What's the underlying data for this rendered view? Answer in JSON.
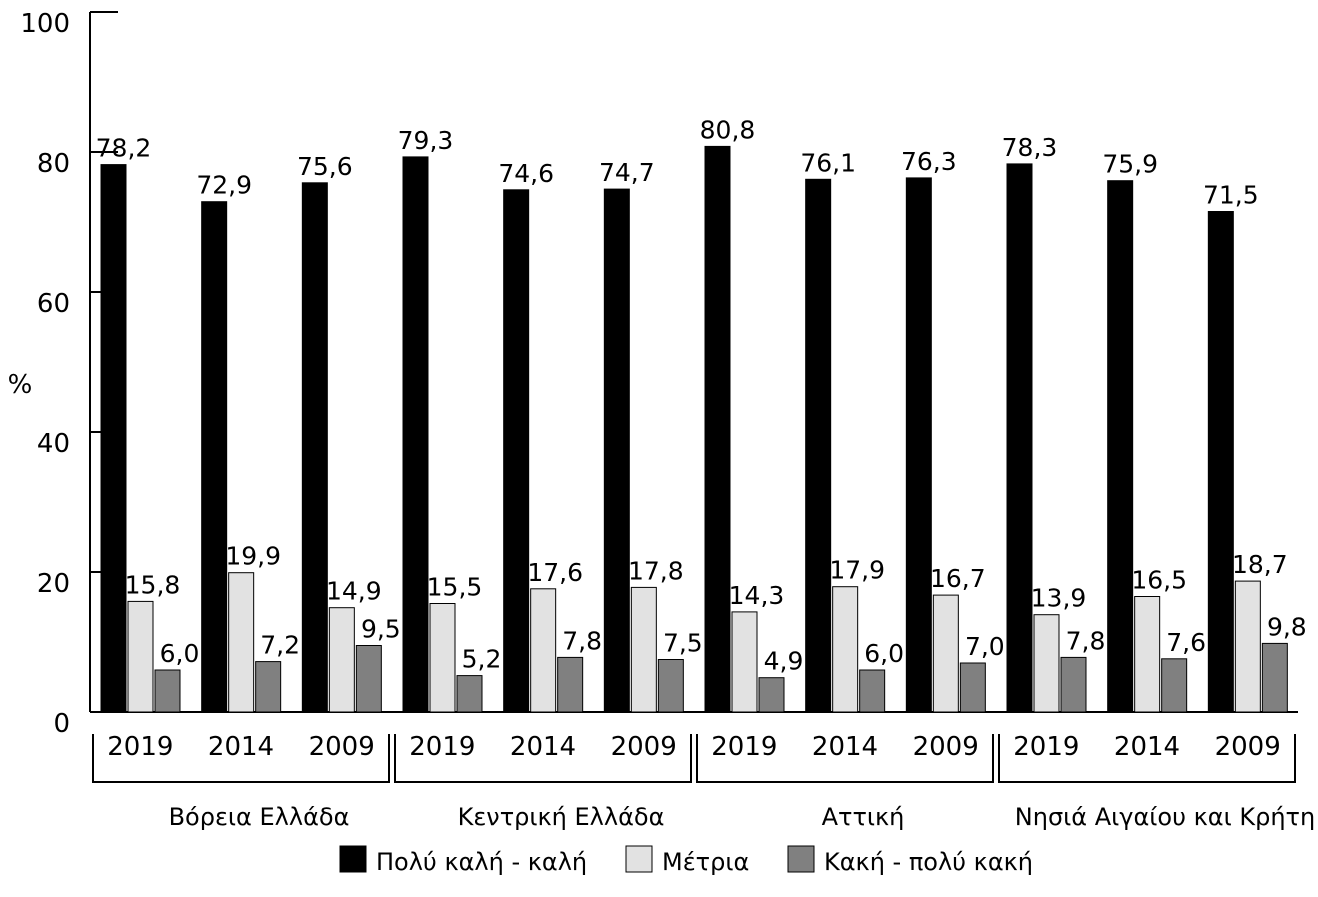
{
  "chart_data": {
    "type": "bar",
    "ylabel": "%",
    "ylim": [
      0,
      100
    ],
    "yticks": [
      0,
      20,
      40,
      60,
      80,
      100
    ],
    "grid": false,
    "legend_position": "bottom",
    "groups": [
      {
        "region": "Βόρεια Ελλάδα",
        "years": [
          "2019",
          "2014",
          "2009"
        ]
      },
      {
        "region": "Κεντρική Ελλάδα",
        "years": [
          "2019",
          "2014",
          "2009"
        ]
      },
      {
        "region": "Αττική",
        "years": [
          "2019",
          "2014",
          "2009"
        ]
      },
      {
        "region": "Νησιά Αιγαίου και Κρήτη",
        "years": [
          "2019",
          "2014",
          "2009"
        ]
      }
    ],
    "series": [
      {
        "name": "Πολύ καλή - καλή",
        "color": "#000000",
        "values": [
          78.2,
          72.9,
          75.6,
          79.3,
          74.6,
          74.7,
          80.8,
          76.1,
          76.3,
          78.3,
          75.9,
          71.5
        ],
        "labels": [
          "78,2",
          "72,9",
          "75,6",
          "79,3",
          "74,6",
          "74,7",
          "80,8",
          "76,1",
          "76,3",
          "78,3",
          "75,9",
          "71,5"
        ]
      },
      {
        "name": "Μέτρια",
        "color": "#e2e2e2",
        "values": [
          15.8,
          19.9,
          14.9,
          15.5,
          17.6,
          17.8,
          14.3,
          17.9,
          16.7,
          13.9,
          16.5,
          18.7
        ],
        "labels": [
          "15,8",
          "19,9",
          "14,9",
          "15,5",
          "17,6",
          "17,8",
          "14,3",
          "17,9",
          "16,7",
          "13,9",
          "16,5",
          "18,7"
        ]
      },
      {
        "name": "Κακή - πολύ κακή",
        "color": "#808080",
        "values": [
          6.0,
          7.2,
          9.5,
          5.2,
          7.8,
          7.5,
          4.9,
          6.0,
          7.0,
          7.8,
          7.6,
          9.8
        ],
        "labels": [
          "6,0",
          "7,2",
          "9,5",
          "5,2",
          "7,8",
          "7,5",
          "4,9",
          "6,0",
          "7,0",
          "7,8",
          "7,6",
          "9,8"
        ]
      }
    ]
  }
}
